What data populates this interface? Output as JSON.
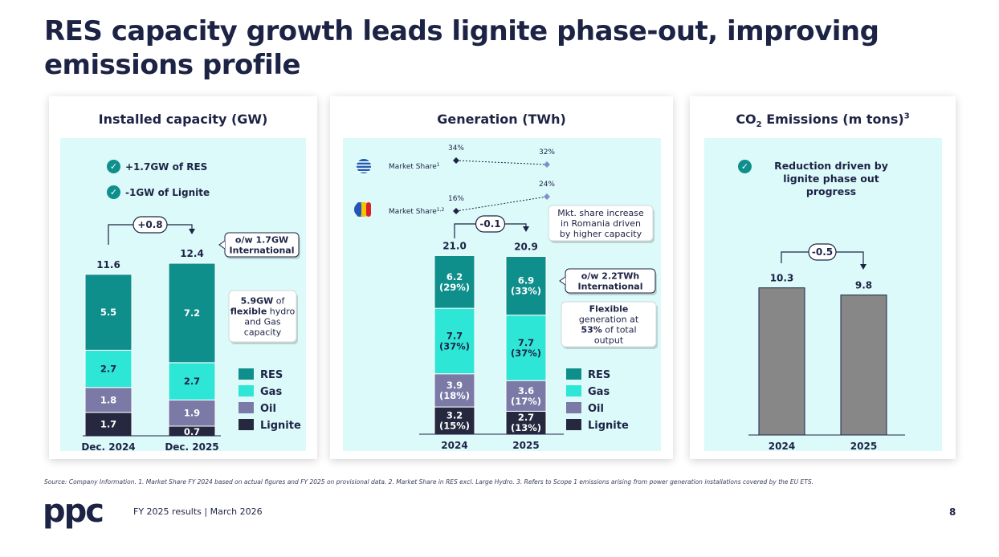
{
  "title": "RES capacity growth leads lignite phase-out, improving emissions profile",
  "colors": {
    "RES": "#0f8f8c",
    "Gas": "#2ee6d6",
    "Oil": "#7b7aa6",
    "Lignite": "#25283f",
    "emissions_bar": "#878787",
    "accent": "#0f8f8c",
    "panel_bg": "#dcfafa"
  },
  "legend": [
    "RES",
    "Gas",
    "Oil",
    "Lignite"
  ],
  "capacity": {
    "panel_title": "Installed capacity (GW)",
    "bullets": [
      "+1.7GW of RES",
      "-1GW of Lignite"
    ],
    "change_label": "+0.8",
    "callout_international": "o/w 1.7GW International",
    "callout_flex_strong": "5.9GW",
    "callout_flex_rest": "of",
    "callout_flex_bold2": "flexible",
    "callout_flex_tail": "hydro and Gas capacity"
  },
  "generation": {
    "panel_title": "Generation (TWh)",
    "market_share_label_gr": "Market Share",
    "market_share_sup_gr": "1",
    "market_share_label_ro": "Market Share",
    "market_share_sup_ro": "1,2",
    "ms_gr_2024": "34%",
    "ms_gr_2025": "32%",
    "ms_ro_2024": "16%",
    "ms_ro_2025": "24%",
    "change_label": "-0.1",
    "callout_romania": "Mkt. share increase in Romania driven by higher capacity",
    "callout_international": "o/w 2.2TWh International",
    "callout_flex_bold": "Flexible",
    "callout_flex_mid": "generation at",
    "callout_flex_pct": "53%",
    "callout_flex_tail": "of total output"
  },
  "emissions": {
    "panel_title": "CO",
    "panel_title_sub": "2",
    "panel_title_rest": " Emissions (m tons)",
    "panel_title_sup": "3",
    "bullet": "Reduction driven by lignite phase out progress",
    "change_label": "-0.5"
  },
  "chart_data": [
    {
      "type": "bar",
      "stacked": true,
      "title": "Installed capacity (GW)",
      "categories": [
        "Dec. 2024",
        "Dec. 2025"
      ],
      "totals": [
        "11.6",
        "12.4"
      ],
      "series": [
        {
          "name": "Lignite",
          "values": [
            1.7,
            0.7
          ]
        },
        {
          "name": "Oil",
          "values": [
            1.8,
            1.9
          ]
        },
        {
          "name": "Gas",
          "values": [
            2.7,
            2.7
          ]
        },
        {
          "name": "RES",
          "values": [
            5.5,
            7.2
          ]
        }
      ]
    },
    {
      "type": "bar",
      "stacked": true,
      "title": "Generation (TWh)",
      "categories": [
        "2024",
        "2025"
      ],
      "totals": [
        "21.0",
        "20.9"
      ],
      "series": [
        {
          "name": "Lignite",
          "values": [
            3.2,
            2.7
          ],
          "labels": [
            "3.2\n(15%)",
            "2.7\n(13%)"
          ]
        },
        {
          "name": "Oil",
          "values": [
            3.9,
            3.6
          ],
          "labels": [
            "3.9\n(18%)",
            "3.6\n(17%)"
          ]
        },
        {
          "name": "Gas",
          "values": [
            7.7,
            7.7
          ],
          "labels": [
            "7.7\n(37%)",
            "7.7\n(37%)"
          ]
        },
        {
          "name": "RES",
          "values": [
            6.2,
            6.9
          ],
          "labels": [
            "6.2\n(29%)",
            "6.9\n(33%)"
          ]
        }
      ]
    },
    {
      "type": "bar",
      "title": "CO2 Emissions (m tons)",
      "categories": [
        "2024",
        "2025"
      ],
      "values": [
        10.3,
        9.8
      ]
    }
  ],
  "footnote": "Source: Company Information. 1. Market Share FY 2024 based on actual figures and FY 2025 on provisional data. 2. Market Share in RES excl. Large Hydro. 3. Refers to Scope 1 emissions  arising  from power generation installations covered by the EU ETS.",
  "footer": {
    "logo_text": "ppc",
    "text": "FY 2025 results | March 2026",
    "page_number": "8"
  }
}
